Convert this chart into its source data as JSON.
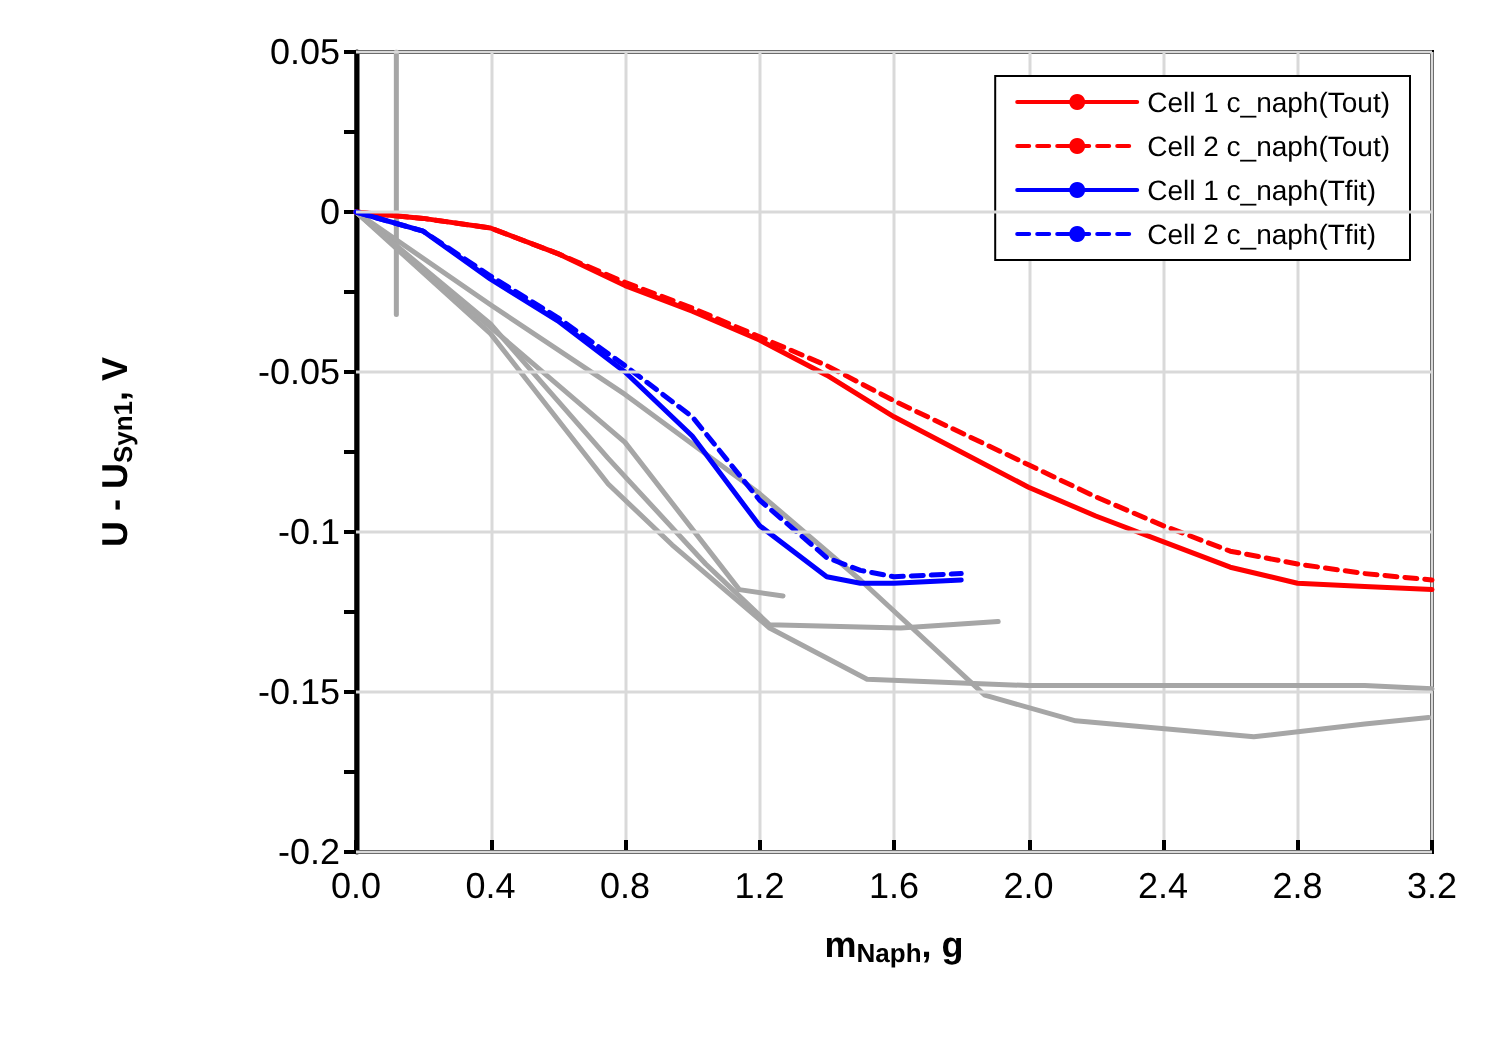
{
  "chart_data": {
    "type": "line",
    "xlabel": "m$_{Naph}$, g",
    "ylabel": "U - U$_{Syn1}$, V",
    "xlim": [
      0,
      3.2
    ],
    "ylim": [
      -0.2,
      0.05
    ],
    "xticks": [
      {
        "value": 0,
        "label": "0.0"
      },
      0.4,
      0.8,
      1.2,
      1.6,
      {
        "value": 2,
        "label": "2.0"
      },
      2.4,
      2.8,
      3.2
    ],
    "yticks": [
      -0.2,
      {
        "value": -0.175,
        "label": null
      },
      -0.15,
      {
        "value": -0.125,
        "label": null
      },
      -0.1,
      {
        "value": -0.075,
        "label": null
      },
      -0.05,
      {
        "value": -0.025,
        "label": null
      },
      0,
      {
        "value": 0.025,
        "label": null
      },
      0.05
    ],
    "grid": true,
    "legend": "top right",
    "marker": "none",
    "series": [
      {
        "name": "Cell 1 c_naph(Tout)",
        "color": "#ff0000",
        "line_style": "solid",
        "x": [
          0,
          0.2,
          0.4,
          0.6,
          0.8,
          1.0,
          1.2,
          1.4,
          1.6,
          1.8,
          2.0,
          2.2,
          2.4,
          2.6,
          2.8,
          3.0,
          3.2
        ],
        "values": [
          0,
          -0.002,
          -0.005,
          -0.013,
          -0.023,
          -0.031,
          -0.04,
          -0.051,
          -0.064,
          -0.075,
          -0.086,
          -0.095,
          -0.103,
          -0.111,
          -0.116,
          -0.117,
          -0.118
        ]
      },
      {
        "name": "Cell 2 c_naph(Tout)",
        "color": "#ff0000",
        "line_style": "dashed",
        "x": [
          0,
          0.2,
          0.4,
          0.6,
          0.8,
          1.0,
          1.2,
          1.4,
          1.6,
          1.8,
          2.0,
          2.2,
          2.4,
          2.6,
          2.8,
          3.0,
          3.2
        ],
        "values": [
          0,
          -0.002,
          -0.005,
          -0.013,
          -0.022,
          -0.03,
          -0.039,
          -0.048,
          -0.059,
          -0.069,
          -0.079,
          -0.089,
          -0.098,
          -0.106,
          -0.11,
          -0.113,
          -0.115
        ]
      },
      {
        "name": "Cell 1 c_naph(Tfit)",
        "color": "#0000ff",
        "line_style": "solid",
        "x": [
          0,
          0.2,
          0.4,
          0.6,
          0.8,
          1.0,
          1.2,
          1.4,
          1.5,
          1.6,
          1.8
        ],
        "values": [
          0,
          -0.006,
          -0.021,
          -0.034,
          -0.05,
          -0.07,
          -0.098,
          -0.114,
          -0.116,
          -0.116,
          -0.115
        ]
      },
      {
        "name": "Cell 2 c_naph(Tfit)",
        "color": "#0000ff",
        "line_style": "dashed",
        "x": [
          0,
          0.2,
          0.4,
          0.6,
          0.8,
          1.0,
          1.2,
          1.4,
          1.5,
          1.6,
          1.8
        ],
        "values": [
          0,
          -0.006,
          -0.02,
          -0.033,
          -0.048,
          -0.064,
          -0.09,
          -0.108,
          -0.112,
          -0.114,
          -0.113
        ]
      },
      {
        "color": "#a6a6a6",
        "line_style": "solid",
        "x": [
          0.12,
          0.12
        ],
        "values": [
          0.05,
          -0.032
        ]
      },
      {
        "color": "#a6a6a6",
        "line_style": "solid",
        "x": [
          0,
          0.4,
          0.8,
          1.2,
          1.5,
          1.87,
          2.14,
          2.67,
          3.0,
          3.19
        ],
        "values": [
          0,
          -0.029,
          -0.057,
          -0.088,
          -0.115,
          -0.151,
          -0.159,
          -0.164,
          -0.16,
          -0.158
        ]
      },
      {
        "color": "#a6a6a6",
        "line_style": "solid",
        "x": [
          0,
          0.4,
          0.75,
          0.94,
          1.23,
          1.52,
          2.0,
          2.5,
          3.0,
          3.2
        ],
        "values": [
          0,
          -0.038,
          -0.085,
          -0.104,
          -0.13,
          -0.146,
          -0.148,
          -0.148,
          -0.148,
          -0.149
        ]
      },
      {
        "color": "#a6a6a6",
        "line_style": "solid",
        "x": [
          0,
          0.4,
          0.75,
          1.04,
          1.23,
          1.62,
          1.91
        ],
        "values": [
          0,
          -0.035,
          -0.077,
          -0.11,
          -0.129,
          -0.13,
          -0.128
        ]
      },
      {
        "color": "#a6a6a6",
        "line_style": "solid",
        "x": [
          0,
          0.4,
          0.8,
          1.14,
          1.27
        ],
        "values": [
          0,
          -0.036,
          -0.072,
          -0.118,
          -0.12
        ]
      }
    ]
  }
}
